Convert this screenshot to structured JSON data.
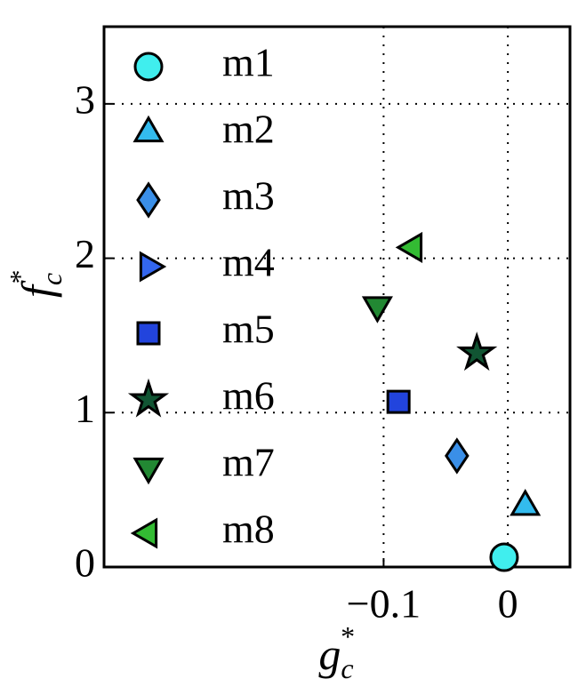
{
  "chart_data": {
    "type": "scatter",
    "xlabel": {
      "base": "g",
      "sub": "c",
      "sup": "*"
    },
    "ylabel": {
      "base": "f",
      "sub": "c",
      "sup": "*"
    },
    "xlim": [
      -0.325,
      0.05
    ],
    "ylim": [
      0,
      3.5
    ],
    "xticks": [
      {
        "value": -0.1,
        "label": "−0.1"
      },
      0
    ],
    "yticks": [
      0,
      1,
      2,
      3
    ],
    "grid": true,
    "legend": "upper left",
    "series": [
      {
        "name": "m1",
        "color": "#40eeee",
        "marker": "circle",
        "x": [
          -0.003
        ],
        "y": [
          0.063
        ]
      },
      {
        "name": "m2",
        "color": "#33bbee",
        "marker": "triangle-up",
        "x": [
          0.014
        ],
        "y": [
          0.39
        ]
      },
      {
        "name": "m3",
        "color": "#3a8fe8",
        "marker": "diamond",
        "x": [
          -0.041
        ],
        "y": [
          0.72
        ]
      },
      {
        "name": "m4",
        "color": "#3366ee",
        "marker": "triangle-right",
        "x": [],
        "y": []
      },
      {
        "name": "m5",
        "color": "#2244dd",
        "marker": "square",
        "x": [
          -0.088
        ],
        "y": [
          1.07
        ]
      },
      {
        "name": "m6",
        "color": "#115533",
        "marker": "star",
        "x": [
          -0.025
        ],
        "y": [
          1.385
        ]
      },
      {
        "name": "m7",
        "color": "#228833",
        "marker": "triangle-down",
        "x": [
          -0.105
        ],
        "y": [
          1.695
        ]
      },
      {
        "name": "m8",
        "color": "#33bb33",
        "marker": "triangle-left",
        "x": [
          -0.076
        ],
        "y": [
          2.07
        ]
      }
    ]
  }
}
